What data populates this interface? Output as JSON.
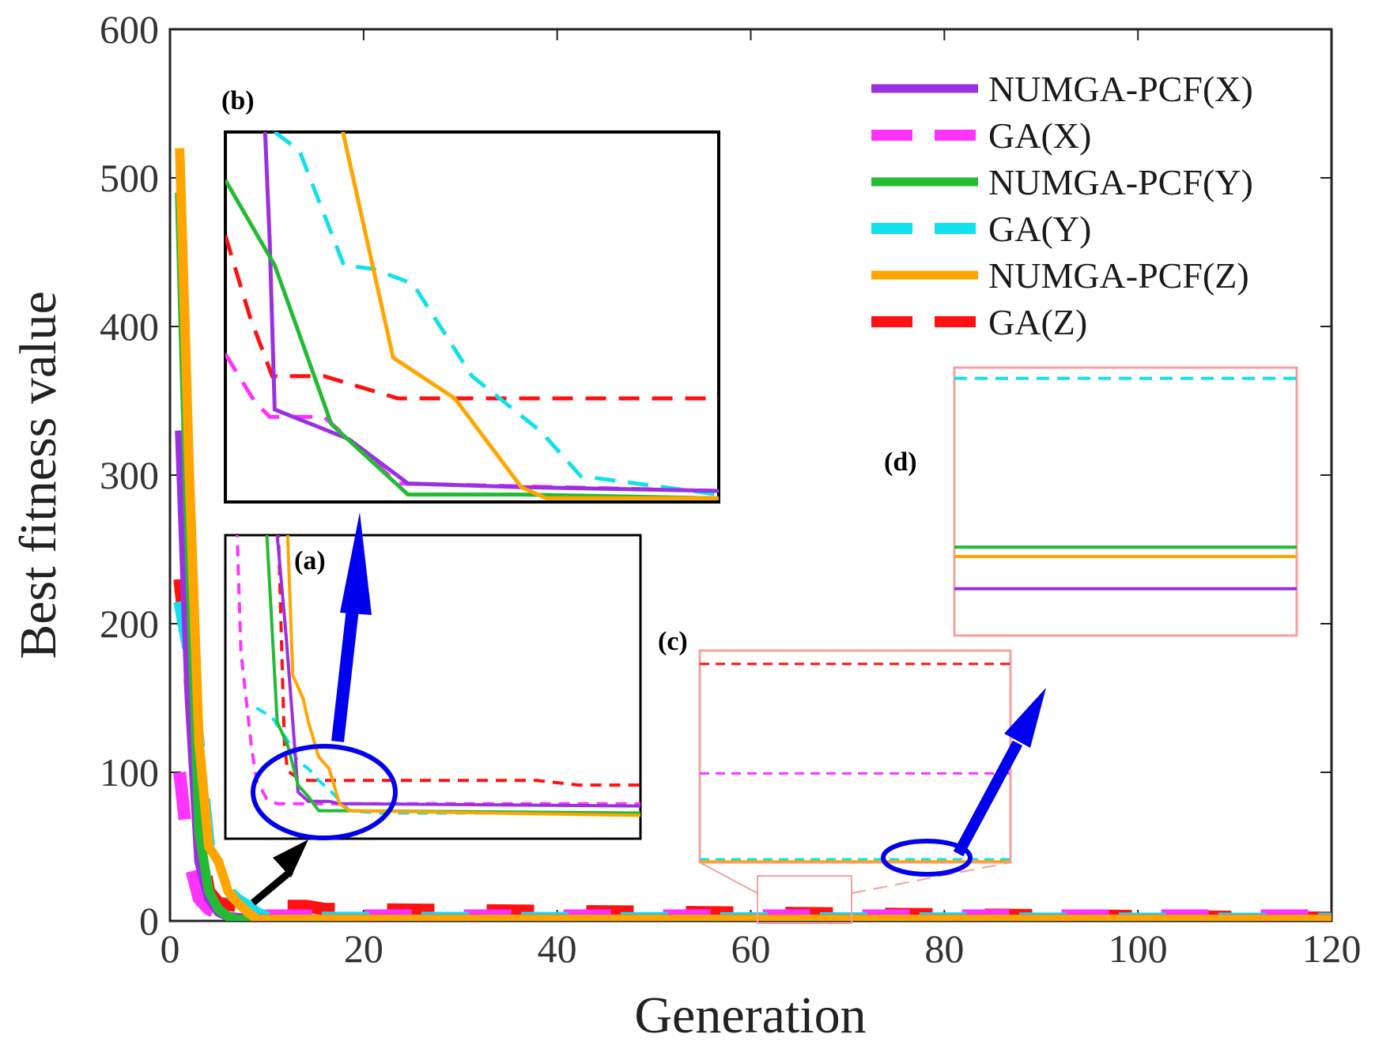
{
  "chart_data": {
    "type": "line",
    "xlabel": "Generation",
    "ylabel": "Best fitness value",
    "xlim": [
      0,
      120
    ],
    "ylim": [
      0,
      600
    ],
    "xticks": [
      0,
      20,
      40,
      60,
      80,
      100,
      120
    ],
    "yticks": [
      0,
      100,
      200,
      300,
      400,
      500,
      600
    ],
    "grid": false,
    "legend_position": "top-right",
    "series": [
      {
        "name": "NUMGA-PCF(X)",
        "color": "#9b30e0",
        "dash": "solid",
        "x": [
          1,
          2,
          3,
          4,
          5,
          6,
          8,
          10,
          120
        ],
        "y": [
          330,
          150,
          40,
          15,
          6,
          3,
          1.5,
          1.2,
          1.2
        ]
      },
      {
        "name": "GA(X)",
        "color": "#ff33ff",
        "dash": "dashed",
        "x": [
          1,
          2,
          3,
          4,
          5,
          7,
          10,
          120
        ],
        "y": [
          100,
          40,
          15,
          8,
          5,
          4,
          3.5,
          3.5
        ]
      },
      {
        "name": "NUMGA-PCF(Y)",
        "color": "#22bb33",
        "dash": "solid",
        "x": [
          1,
          2,
          3,
          4,
          5,
          6,
          7,
          120
        ],
        "y": [
          490,
          250,
          60,
          20,
          8,
          3,
          0.8,
          0.8
        ]
      },
      {
        "name": "GA(Y)",
        "color": "#11e0ee",
        "dash": "dashed",
        "x": [
          1,
          2,
          4,
          5,
          6,
          7,
          8,
          9,
          10,
          120
        ],
        "y": [
          215,
          180,
          50,
          30,
          20,
          14,
          10,
          5,
          2,
          1.2
        ]
      },
      {
        "name": "NUMGA-PCF(Z)",
        "color": "#ffa500",
        "dash": "solid",
        "x": [
          1,
          2,
          3,
          4,
          5,
          6,
          7,
          8,
          9,
          120
        ],
        "y": [
          520,
          300,
          120,
          50,
          40,
          20,
          12,
          6,
          1,
          1
        ]
      },
      {
        "name": "GA(Z)",
        "color": "#ff1111",
        "dash": "dashed",
        "x": [
          1,
          2,
          3,
          4,
          5,
          7,
          10,
          14,
          16,
          120
        ],
        "y": [
          230,
          170,
          60,
          20,
          12,
          10,
          10,
          10,
          8,
          2
        ]
      }
    ],
    "annotations": [
      "(a)",
      "(b)",
      "(c)",
      "(d)"
    ]
  }
}
